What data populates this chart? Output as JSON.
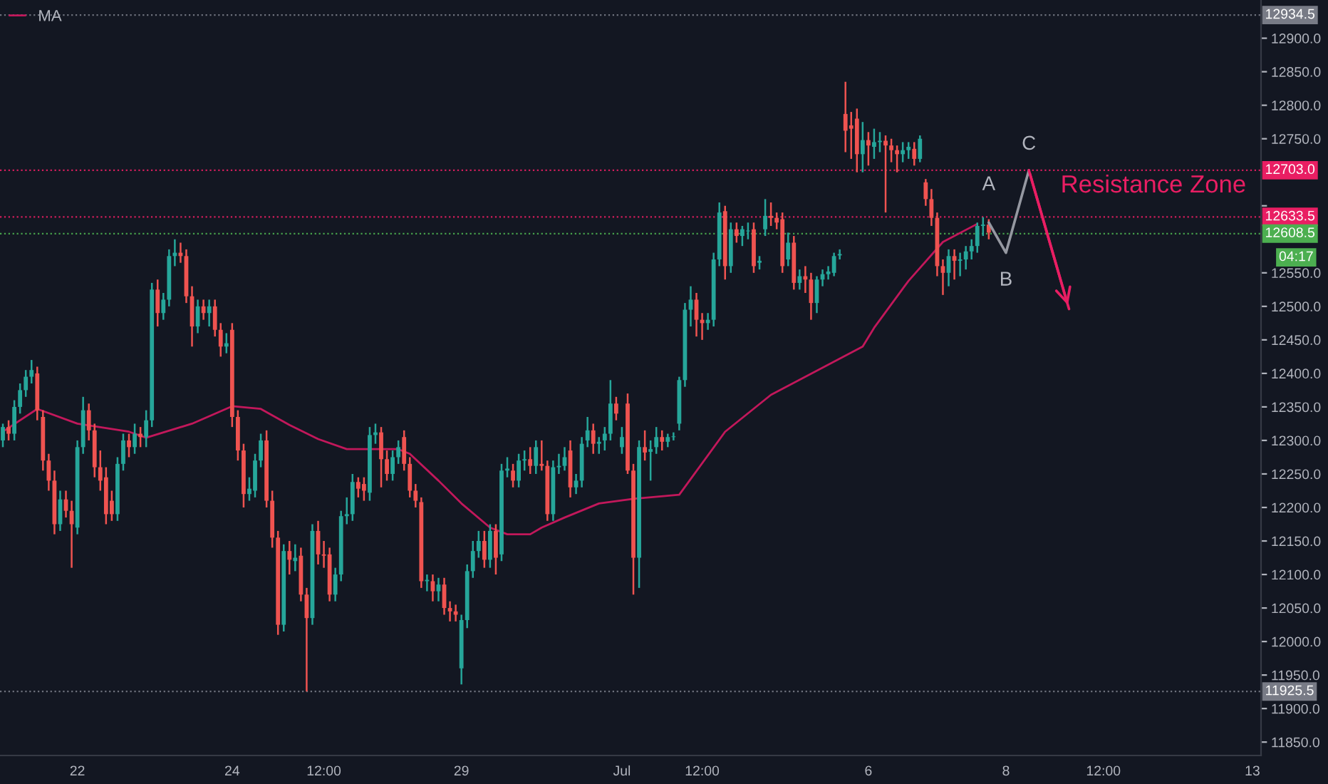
{
  "chart_data": {
    "type": "candlestick",
    "categories": [
      null,
      null,
      null,
      null,
      null,
      null,
      null,
      null,
      null,
      null,
      null,
      null,
      null,
      "22",
      null,
      null,
      null,
      null,
      null,
      null,
      null,
      null,
      null,
      null,
      null,
      null,
      null,
      null,
      null,
      null,
      null,
      null,
      null,
      null,
      null,
      null,
      null,
      null,
      null,
      null,
      "24",
      null,
      null,
      null,
      null,
      null,
      null,
      null,
      null,
      null,
      null,
      null,
      null,
      null,
      null,
      null,
      "12:00",
      null,
      null,
      null,
      null,
      null,
      null,
      null,
      null,
      null,
      null,
      null,
      null,
      null,
      null,
      null,
      null,
      null,
      null,
      null,
      null,
      null,
      null,
      null,
      "29",
      null,
      null,
      null,
      null,
      null,
      null,
      null,
      null,
      null,
      null,
      null,
      null,
      null,
      null,
      null,
      null,
      null,
      null,
      null,
      null,
      null,
      null,
      null,
      null,
      null,
      null,
      null,
      "Jul",
      null,
      null,
      null,
      null,
      null,
      null,
      null,
      null,
      null,
      null,
      null,
      null,
      null,
      "12:00",
      null,
      null,
      null,
      null,
      null,
      null,
      null,
      null,
      null,
      null,
      null,
      null,
      null,
      null,
      null,
      null,
      null,
      null,
      null,
      null,
      null,
      null,
      null,
      null,
      null,
      null,
      null,
      null,
      "6",
      null,
      null,
      null,
      null,
      null,
      null,
      null,
      null,
      null,
      null,
      null,
      null,
      null,
      null,
      null,
      null,
      null,
      null,
      null,
      null,
      null,
      null,
      null,
      "8",
      null,
      null,
      null,
      null,
      null,
      null,
      null,
      null,
      null,
      null,
      null,
      null,
      null,
      null,
      null,
      null,
      "12:00",
      null,
      null,
      null,
      null,
      null,
      null,
      null,
      null,
      null,
      null,
      null,
      null,
      null,
      null,
      null,
      null,
      null,
      null,
      null,
      null,
      null,
      null,
      null,
      null,
      null,
      "13",
      null
    ],
    "ohlc": [
      [
        12300,
        12325,
        12290,
        12320
      ],
      [
        12320,
        12330,
        12300,
        12310
      ],
      [
        12310,
        12360,
        12300,
        12350
      ],
      [
        12350,
        12385,
        12340,
        12375
      ],
      [
        12375,
        12405,
        12365,
        12395
      ],
      [
        12395,
        12420,
        12385,
        12405
      ],
      [
        12400,
        12410,
        12330,
        12345
      ],
      [
        12335,
        12345,
        12255,
        12270
      ],
      [
        12270,
        12280,
        12225,
        12240
      ],
      [
        12240,
        12255,
        12160,
        12175
      ],
      [
        12175,
        12225,
        12165,
        12212
      ],
      [
        12212,
        12225,
        12185,
        12195
      ],
      [
        12195,
        12210,
        12110,
        12175
      ],
      [
        12170,
        12300,
        12160,
        12290
      ],
      [
        12290,
        12365,
        12280,
        12345
      ],
      [
        12345,
        12355,
        12300,
        12315
      ],
      [
        12315,
        12325,
        12245,
        12260
      ],
      [
        12260,
        12285,
        12225,
        12240
      ],
      [
        12245,
        12260,
        12175,
        12190
      ],
      [
        12210,
        12225,
        12180,
        12190
      ],
      [
        12190,
        12275,
        12180,
        12265
      ],
      [
        12265,
        12310,
        12255,
        12300
      ],
      [
        12300,
        12310,
        12275,
        12290
      ],
      [
        12290,
        12325,
        12280,
        12310
      ],
      [
        12310,
        12320,
        12290,
        12305
      ],
      [
        12305,
        12345,
        12290,
        12330
      ],
      [
        12330,
        12535,
        12320,
        12525
      ],
      [
        12525,
        12540,
        12470,
        12490
      ],
      [
        12490,
        12520,
        12480,
        12510
      ],
      [
        12510,
        12585,
        12500,
        12575
      ],
      [
        12575,
        12600,
        12560,
        12580
      ],
      [
        12580,
        12595,
        12565,
        12575
      ],
      [
        12575,
        12585,
        12505,
        12515
      ],
      [
        12515,
        12530,
        12440,
        12470
      ],
      [
        12470,
        12510,
        12460,
        12500
      ],
      [
        12500,
        12510,
        12480,
        12490
      ],
      [
        12490,
        12510,
        12470,
        12500
      ],
      [
        12500,
        12510,
        12455,
        12465
      ],
      [
        12465,
        12475,
        12425,
        12440
      ],
      [
        12440,
        12460,
        12430,
        12445
      ],
      [
        12465,
        12475,
        12320,
        12335
      ],
      [
        12335,
        12345,
        12270,
        12285
      ],
      [
        12285,
        12295,
        12200,
        12220
      ],
      [
        12220,
        12245,
        12210,
        12228
      ],
      [
        12225,
        12280,
        12215,
        12270
      ],
      [
        12270,
        12310,
        12260,
        12300
      ],
      [
        12300,
        12315,
        12200,
        12210
      ],
      [
        12210,
        12225,
        12140,
        12155
      ],
      [
        12155,
        12165,
        12010,
        12025
      ],
      [
        12025,
        12145,
        12015,
        12135
      ],
      [
        12135,
        12150,
        12100,
        12122
      ],
      [
        12120,
        12145,
        12105,
        12125
      ],
      [
        12128,
        12140,
        12060,
        12070
      ],
      [
        12070,
        12080,
        11925.5,
        12035
      ],
      [
        12035,
        12175,
        12025,
        12165
      ],
      [
        12165,
        12180,
        12115,
        12130
      ],
      [
        12130,
        12150,
        12110,
        12128
      ],
      [
        12130,
        12140,
        12060,
        12070
      ],
      [
        12070,
        12110,
        12060,
        12100
      ],
      [
        12100,
        12195,
        12090,
        12187
      ],
      [
        12187,
        12215,
        12175,
        12190
      ],
      [
        12190,
        12250,
        12180,
        12238
      ],
      [
        12238,
        12245,
        12215,
        12228
      ],
      [
        12235,
        12245,
        12210,
        12225
      ],
      [
        12222,
        12320,
        12210,
        12308
      ],
      [
        12308,
        12325,
        12295,
        12312
      ],
      [
        12312,
        12320,
        12230,
        12272
      ],
      [
        12272,
        12285,
        12240,
        12250
      ],
      [
        12250,
        12285,
        12240,
        12275
      ],
      [
        12275,
        12300,
        12265,
        12290
      ],
      [
        12305,
        12315,
        12255,
        12265
      ],
      [
        12265,
        12275,
        12215,
        12225
      ],
      [
        12225,
        12235,
        12200,
        12210
      ],
      [
        12208,
        12215,
        12080,
        12090
      ],
      [
        12090,
        12100,
        12075,
        12092
      ],
      [
        12090,
        12100,
        12060,
        12075
      ],
      [
        12075,
        12095,
        12060,
        12085
      ],
      [
        12085,
        12095,
        12040,
        12050
      ],
      [
        12050,
        12060,
        12030,
        12045
      ],
      [
        12045,
        12055,
        12030,
        12040
      ],
      [
        11960,
        12040,
        11936,
        12032
      ],
      [
        12032,
        12115,
        12020,
        12105
      ],
      [
        12105,
        12150,
        12095,
        12135
      ],
      [
        12135,
        12165,
        12125,
        12150
      ],
      [
        12150,
        12165,
        12110,
        12122
      ],
      [
        12122,
        12175,
        12110,
        12165
      ],
      [
        12165,
        12175,
        12100,
        12125
      ],
      [
        12130,
        12265,
        12120,
        12255
      ],
      [
        12255,
        12275,
        12245,
        12258
      ],
      [
        12255,
        12265,
        12230,
        12240
      ],
      [
        12240,
        12280,
        12230,
        12270
      ],
      [
        12270,
        12285,
        12255,
        12272
      ],
      [
        12272,
        12290,
        12250,
        12262
      ],
      [
        12262,
        12300,
        12250,
        12290
      ],
      [
        12265,
        12300,
        12255,
        12262
      ],
      [
        12262,
        12270,
        12180,
        12190
      ],
      [
        12190,
        12270,
        12180,
        12260
      ],
      [
        12260,
        12280,
        12250,
        12262
      ],
      [
        12262,
        12290,
        12255,
        12275
      ],
      [
        12285,
        12300,
        12215,
        12230
      ],
      [
        12230,
        12250,
        12220,
        12240
      ],
      [
        12240,
        12305,
        12230,
        12295
      ],
      [
        12300,
        12335,
        12290,
        12315
      ],
      [
        12315,
        12325,
        12280,
        12295
      ],
      [
        12295,
        12305,
        12280,
        12298
      ],
      [
        12300,
        12320,
        12285,
        12310
      ],
      [
        12310,
        12390,
        12300,
        12355
      ],
      [
        12355,
        12365,
        12330,
        12340
      ],
      [
        12290,
        12320,
        12280,
        12305
      ],
      [
        12355,
        12370,
        12250,
        12255
      ],
      [
        12255,
        12265,
        12070,
        12125
      ],
      [
        12125,
        12300,
        12080,
        12290
      ],
      [
        12290,
        12315,
        12270,
        12282
      ],
      [
        12283,
        12300,
        12240,
        12287
      ],
      [
        12290,
        12320,
        12280,
        12305
      ],
      [
        12305,
        12315,
        12285,
        12298
      ],
      [
        12298,
        12310,
        12290,
        12305
      ],
      [
        12305,
        12312,
        12300,
        12306
      ],
      [
        12325,
        12395,
        12315,
        12390
      ],
      [
        12390,
        12505,
        12380,
        12495
      ],
      [
        12495,
        12530,
        12470,
        12510
      ],
      [
        12510,
        12520,
        12455,
        12480
      ],
      [
        12480,
        12490,
        12450,
        12475
      ],
      [
        12475,
        12490,
        12465,
        12480
      ],
      [
        12480,
        12580,
        12470,
        12570
      ],
      [
        12570,
        12655,
        12560,
        12640
      ],
      [
        12642,
        12650,
        12540,
        12560
      ],
      [
        12560,
        12625,
        12550,
        12615
      ],
      [
        12615,
        12625,
        12595,
        12605
      ],
      [
        12605,
        12620,
        12590,
        12615
      ],
      [
        12612,
        12625,
        12600,
        12612
      ],
      [
        12615,
        12625,
        12550,
        12560
      ],
      [
        12565,
        12575,
        12555,
        12568
      ],
      [
        12615,
        12660,
        12605,
        12635
      ],
      [
        12635,
        12655,
        12620,
        12632
      ],
      [
        12632,
        12640,
        12615,
        12625
      ],
      [
        12630,
        12640,
        12550,
        12560
      ],
      [
        12570,
        12610,
        12560,
        12595
      ],
      [
        12595,
        12605,
        12525,
        12535
      ],
      [
        12535,
        12555,
        12525,
        12545
      ],
      [
        12545,
        12560,
        12520,
        12540
      ],
      [
        12540,
        12550,
        12480,
        12505
      ],
      [
        12505,
        12545,
        12490,
        12540
      ],
      [
        12540,
        12555,
        12530,
        12548
      ],
      [
        12548,
        12560,
        12540,
        12552
      ],
      [
        12550,
        12580,
        12545,
        12575
      ],
      [
        12576,
        12585,
        12570,
        12578
      ],
      [
        12787,
        12835,
        12730,
        12762
      ],
      [
        12770,
        12790,
        12720,
        12765
      ],
      [
        12780,
        12795,
        12700,
        12727
      ],
      [
        12727,
        12775,
        12700,
        12748
      ],
      [
        12748,
        12760,
        12710,
        12740
      ],
      [
        12738,
        12765,
        12720,
        12745
      ],
      [
        12745,
        12760,
        12730,
        12747
      ],
      [
        12747,
        12755,
        12640,
        12740
      ],
      [
        12740,
        12750,
        12715,
        12733
      ],
      [
        12733,
        12740,
        12700,
        12727
      ],
      [
        12727,
        12745,
        12715,
        12733
      ],
      [
        12733,
        12745,
        12720,
        12738
      ],
      [
        12735,
        12745,
        12710,
        12720
      ],
      [
        12720,
        12755,
        12715,
        12750
      ],
      [
        12685,
        12690,
        12650,
        12660
      ],
      [
        12660,
        12675,
        12620,
        12632
      ],
      [
        12632,
        12640,
        12545,
        12560
      ],
      [
        12560,
        12570,
        12517,
        12550
      ],
      [
        12550,
        12585,
        12530,
        12575
      ],
      [
        12575,
        12585,
        12540,
        12568
      ],
      [
        12568,
        12580,
        12545,
        12570
      ],
      [
        12570,
        12590,
        12555,
        12582
      ],
      [
        12582,
        12600,
        12570,
        12590
      ],
      [
        12590,
        12625,
        12580,
        12620
      ],
      [
        12620,
        12633,
        12605,
        12622
      ],
      [
        12622,
        12630,
        12600,
        12610
      ],
      null,
      null,
      null,
      null,
      null,
      null,
      null,
      null,
      null,
      null,
      null,
      null,
      null,
      null,
      null,
      null,
      null,
      null,
      null,
      null,
      null,
      null,
      null,
      null,
      null,
      null,
      null,
      null,
      null,
      null,
      null,
      null,
      null,
      null,
      null,
      null,
      null,
      null,
      null,
      null,
      null,
      null,
      null,
      null,
      null,
      null,
      null
    ],
    "colors": [
      "#26a69a",
      "#ef5350",
      "#26a69a",
      "#26a69a",
      "#26a69a",
      "#26a69a",
      "#ef5350",
      "#ef5350",
      "#ef5350",
      "#ef5350",
      "#26a69a",
      "#ef5350",
      "#ef5350",
      "#26a69a",
      "#26a69a",
      "#ef5350",
      "#ef5350",
      "#ef5350",
      "#ef5350",
      "#ef5350",
      "#26a69a",
      "#26a69a",
      "#ef5350",
      "#26a69a",
      "#ef5350",
      "#26a69a",
      "#26a69a",
      "#ef5350",
      "#26a69a",
      "#26a69a",
      "#26a69a",
      "#ef5350",
      "#ef5350",
      "#ef5350",
      "#26a69a",
      "#ef5350",
      "#26a69a",
      "#ef5350",
      "#ef5350",
      "#26a69a",
      "#ef5350",
      "#ef5350",
      "#ef5350",
      "#26a69a",
      "#26a69a",
      "#26a69a",
      "#ef5350",
      "#ef5350",
      "#ef5350",
      "#26a69a",
      "#ef5350",
      "#26a69a",
      "#ef5350",
      "#ef5350",
      "#26a69a",
      "#ef5350",
      "#ef5350",
      "#ef5350",
      "#26a69a",
      "#26a69a",
      "#26a69a",
      "#26a69a",
      "#ef5350",
      "#ef5350",
      "#26a69a",
      "#26a69a",
      "#ef5350",
      "#ef5350",
      "#26a69a",
      "#26a69a",
      "#ef5350",
      "#ef5350",
      "#ef5350",
      "#ef5350",
      "#26a69a",
      "#ef5350",
      "#26a69a",
      "#ef5350",
      "#ef5350",
      "#ef5350",
      "#26a69a",
      "#26a69a",
      "#26a69a",
      "#26a69a",
      "#ef5350",
      "#26a69a",
      "#ef5350",
      "#26a69a",
      "#26a69a",
      "#ef5350",
      "#26a69a",
      "#26a69a",
      "#ef5350",
      "#26a69a",
      "#ef5350",
      "#ef5350",
      "#26a69a",
      "#26a69a",
      "#26a69a",
      "#ef5350",
      "#26a69a",
      "#26a69a",
      "#26a69a",
      "#ef5350",
      "#26a69a",
      "#26a69a",
      "#26a69a",
      "#ef5350",
      "#26a69a",
      "#ef5350",
      "#ef5350",
      "#26a69a",
      "#ef5350",
      "#26a69a",
      "#26a69a",
      "#ef5350",
      "#26a69a",
      "#26a69a",
      "#26a69a",
      "#26a69a",
      "#26a69a",
      "#ef5350",
      "#ef5350",
      "#26a69a",
      "#26a69a",
      "#26a69a",
      "#ef5350",
      "#26a69a",
      "#ef5350",
      "#26a69a",
      "#26a69a",
      "#ef5350",
      "#26a69a",
      "#26a69a",
      "#ef5350",
      "#ef5350",
      "#ef5350",
      "#26a69a",
      "#ef5350",
      "#26a69a",
      "#ef5350",
      "#ef5350",
      "#26a69a",
      "#26a69a",
      "#26a69a",
      "#26a69a",
      "#26a69a",
      "#ef5350",
      "#ef5350",
      "#ef5350",
      "#26a69a",
      "#ef5350",
      "#26a69a",
      "#26a69a",
      "#ef5350",
      "#ef5350",
      "#ef5350",
      "#26a69a",
      "#26a69a",
      "#ef5350",
      "#26a69a",
      "#ef5350",
      "#ef5350",
      "#ef5350",
      "#ef5350",
      "#26a69a",
      "#ef5350",
      "#26a69a",
      "#26a69a",
      "#26a69a",
      "#26a69a",
      "#26a69a",
      "#ef5350",
      null,
      null,
      null,
      null,
      null,
      null,
      null,
      null,
      null,
      null,
      null,
      null,
      null,
      null,
      null,
      null,
      null,
      null,
      null,
      null,
      null,
      null,
      null,
      null,
      null,
      null,
      null,
      null,
      null,
      null,
      null,
      null,
      null,
      null,
      null,
      null,
      null,
      null,
      null,
      null,
      null,
      null,
      null,
      null,
      null,
      null,
      null
    ],
    "series": [
      {
        "name": "MA",
        "type": "line",
        "color": "#c2185b",
        "values": [
          12313,
          null,
          null,
          null,
          null,
          null,
          12347,
          null,
          null,
          null,
          null,
          null,
          null,
          12325,
          null,
          null,
          null,
          null,
          null,
          null,
          null,
          null,
          12313,
          null,
          null,
          12304,
          null,
          null,
          null,
          null,
          null,
          null,
          null,
          12325,
          null,
          null,
          null,
          null,
          null,
          null,
          12351,
          null,
          null,
          null,
          null,
          12347,
          null,
          null,
          null,
          null,
          12323,
          null,
          null,
          null,
          null,
          12302,
          null,
          null,
          null,
          null,
          12287,
          null,
          null,
          null,
          null,
          null,
          null,
          null,
          null,
          12287,
          null,
          12280,
          null,
          null,
          null,
          null,
          12240,
          null,
          null,
          null,
          12206,
          null,
          null,
          null,
          null,
          12170,
          null,
          null,
          12160,
          null,
          null,
          null,
          12160,
          null,
          12170,
          null,
          null,
          null,
          12185,
          null,
          null,
          null,
          null,
          null,
          12206,
          null,
          null,
          null,
          null,
          null,
          12213,
          null,
          null,
          null,
          null,
          null,
          null,
          null,
          12219,
          null,
          null,
          null,
          null,
          null,
          null,
          null,
          12313,
          null,
          null,
          null,
          null,
          null,
          null,
          null,
          12368,
          null,
          null,
          null,
          null,
          null,
          null,
          null,
          null,
          null,
          null,
          null,
          null,
          null,
          null,
          null,
          12440,
          null,
          12468,
          null,
          null,
          null,
          null,
          null,
          12538,
          null,
          null,
          null,
          null,
          null,
          12596,
          null,
          null,
          null,
          null,
          null,
          12623,
          null,
          null,
          null,
          null,
          null,
          null,
          null,
          null,
          null,
          null,
          null,
          null,
          null,
          null,
          null,
          null,
          null,
          null,
          null,
          null,
          null,
          null,
          null,
          null,
          null,
          null,
          null,
          null,
          null,
          null,
          null,
          null,
          null,
          null,
          null,
          null,
          null,
          null,
          null,
          null,
          null,
          null,
          null,
          null,
          null,
          null,
          null,
          null,
          null
        ]
      },
      {
        "type": "line",
        "color": "#9598a1",
        "values": [
          null,
          null,
          null,
          null,
          null,
          null,
          null,
          null,
          null,
          null,
          null,
          null,
          null,
          null,
          null,
          null,
          null,
          null,
          null,
          null,
          null,
          null,
          null,
          null,
          null,
          null,
          null,
          null,
          null,
          null,
          null,
          null,
          null,
          null,
          null,
          null,
          null,
          null,
          null,
          null,
          null,
          null,
          null,
          null,
          null,
          null,
          null,
          null,
          null,
          null,
          null,
          null,
          null,
          null,
          null,
          null,
          null,
          null,
          null,
          null,
          null,
          null,
          null,
          null,
          null,
          null,
          null,
          null,
          null,
          null,
          null,
          null,
          null,
          null,
          null,
          null,
          null,
          null,
          null,
          null,
          null,
          null,
          null,
          null,
          null,
          null,
          null,
          null,
          null,
          null,
          null,
          null,
          null,
          null,
          null,
          null,
          null,
          null,
          null,
          null,
          null,
          null,
          null,
          null,
          null,
          null,
          null,
          null,
          null,
          null,
          null,
          null,
          null,
          null,
          null,
          null,
          null,
          null,
          null,
          null,
          null,
          null,
          null,
          null,
          null,
          null,
          null,
          null,
          null,
          null,
          null,
          null,
          null,
          null,
          null,
          null,
          null,
          null,
          null,
          null,
          null,
          null,
          null,
          null,
          null,
          null,
          null,
          null,
          null,
          null,
          null,
          null,
          null,
          null,
          null,
          null,
          null,
          null,
          null,
          null,
          null,
          null,
          null,
          null,
          null,
          null,
          null,
          null,
          null,
          null,
          null,
          null,
          12625,
          null,
          null,
          12580,
          null,
          null,
          null,
          12703,
          null,
          null,
          null,
          null,
          null,
          null,
          null,
          null,
          null,
          null,
          null,
          null,
          null,
          null,
          null,
          null,
          null,
          null,
          null,
          null,
          null,
          null,
          null,
          null,
          null,
          null,
          null,
          null,
          null,
          null,
          null,
          null,
          null,
          null,
          null,
          null,
          null,
          null,
          null,
          null
        ]
      },
      {
        "type": "line",
        "color": "#e91e63",
        "values": [
          null,
          null,
          null,
          null,
          null,
          null,
          null,
          null,
          null,
          null,
          null,
          null,
          null,
          null,
          null,
          null,
          null,
          null,
          null,
          null,
          null,
          null,
          null,
          null,
          null,
          null,
          null,
          null,
          null,
          null,
          null,
          null,
          null,
          null,
          null,
          null,
          null,
          null,
          null,
          null,
          null,
          null,
          null,
          null,
          null,
          null,
          null,
          null,
          null,
          null,
          null,
          null,
          null,
          null,
          null,
          null,
          null,
          null,
          null,
          null,
          null,
          null,
          null,
          null,
          null,
          null,
          null,
          null,
          null,
          null,
          null,
          null,
          null,
          null,
          null,
          null,
          null,
          null,
          null,
          null,
          null,
          null,
          null,
          null,
          null,
          null,
          null,
          null,
          null,
          null,
          null,
          null,
          null,
          null,
          null,
          null,
          null,
          null,
          null,
          null,
          null,
          null,
          null,
          null,
          null,
          null,
          null,
          null,
          null,
          null,
          null,
          null,
          null,
          null,
          null,
          null,
          null,
          null,
          null,
          null,
          null,
          null,
          null,
          null,
          null,
          null,
          null,
          null,
          null,
          null,
          null,
          null,
          null,
          null,
          null,
          null,
          null,
          null,
          null,
          null,
          null,
          null,
          null,
          null,
          null,
          null,
          null,
          null,
          null,
          null,
          null,
          null,
          null,
          null,
          null,
          null,
          null,
          null,
          null,
          null,
          null,
          null,
          null,
          null,
          null,
          null,
          null,
          null,
          null,
          null,
          null,
          null,
          null,
          null,
          null,
          null,
          null,
          null,
          null,
          12703,
          null,
          null,
          null,
          null,
          null,
          null,
          12496,
          null,
          null,
          null,
          null,
          null,
          null,
          null,
          null,
          null,
          null,
          null,
          null,
          null,
          null,
          null,
          null,
          null,
          null,
          null,
          null,
          null,
          null,
          null,
          null,
          null,
          null,
          null,
          null,
          null,
          null,
          null,
          null,
          null
        ]
      }
    ],
    "annotations": [
      "A",
      "B",
      {
        "text": "C",
        "y": 12703
      },
      "Resistance Zone",
      "04:17"
    ],
    "ref_lines": [
      {
        "axis": "y",
        "value": 12934.5,
        "label": "12934.5",
        "color": "#787b86",
        "line_style": "dotted"
      },
      {
        "axis": "y",
        "value": 12703.0,
        "label": "12703.0",
        "color": "#e91e63",
        "line_style": "dotted"
      },
      {
        "axis": "y",
        "value": 12633.5,
        "label": "12633.5",
        "color": "#e91e63",
        "line_style": "dotted"
      },
      {
        "axis": "y",
        "value": 12608.5,
        "label": "12608.5",
        "color": "#4caf50",
        "line_style": "dotted"
      },
      {
        "axis": "y",
        "value": 11925.5,
        "label": "11925.5",
        "color": "#787b86",
        "line_style": "dotted"
      }
    ],
    "ylim": [
      11830,
      12957
    ],
    "yticks": [
      {
        "value": 11850,
        "label": "11850.0"
      },
      {
        "value": 11900,
        "label": "11900.0"
      },
      {
        "value": 11950,
        "label": "11950.0"
      },
      {
        "value": 12000,
        "label": "12000.0"
      },
      {
        "value": 12050,
        "label": "12050.0"
      },
      {
        "value": 12100,
        "label": "12100.0"
      },
      {
        "value": 12150,
        "label": "12150.0"
      },
      {
        "value": 12200,
        "label": "12200.0"
      },
      {
        "value": 12250,
        "label": "12250.0"
      },
      {
        "value": 12300,
        "label": "12300.0"
      },
      {
        "value": 12350,
        "label": "12350.0"
      },
      {
        "value": 12400,
        "label": "12400.0"
      },
      {
        "value": 12450,
        "label": "12450.0"
      },
      {
        "value": 12500,
        "label": "12500.0"
      },
      {
        "value": 12550,
        "label": "12550.0"
      },
      {
        "value": 12650,
        "label": null
      },
      {
        "value": 12750,
        "label": "12750.0"
      },
      {
        "value": 12800,
        "label": "12800.0"
      },
      {
        "value": 12850,
        "label": "12850.0"
      },
      {
        "value": 12900,
        "label": "12900.0"
      }
    ],
    "grid": false,
    "legend": "top left"
  }
}
